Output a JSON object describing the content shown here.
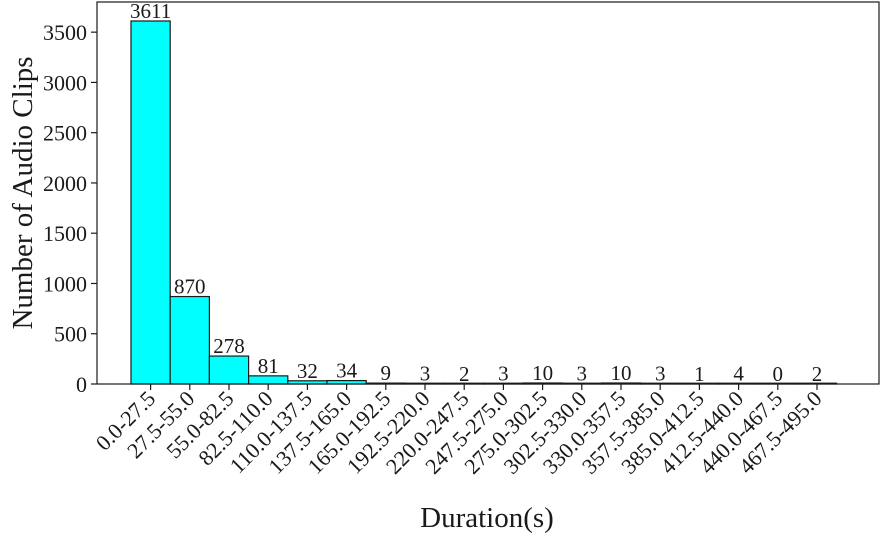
{
  "chart_data": {
    "type": "bar",
    "title": "",
    "xlabel": "Duration(s)",
    "ylabel": "Number of Audio Clips",
    "categories": [
      "0.0-27.5",
      "27.5-55.0",
      "55.0-82.5",
      "82.5-110.0",
      "110.0-137.5",
      "137.5-165.0",
      "165.0-192.5",
      "192.5-220.0",
      "220.0-247.5",
      "247.5-275.0",
      "275.0-302.5",
      "302.5-330.0",
      "330.0-357.5",
      "357.5-385.0",
      "385.0-412.5",
      "412.5-440.0",
      "440.0-467.5",
      "467.5-495.0"
    ],
    "values": [
      3611,
      870,
      278,
      81,
      32,
      34,
      9,
      3,
      2,
      3,
      10,
      3,
      10,
      3,
      1,
      4,
      0,
      2
    ],
    "ylim": [
      0,
      3800
    ],
    "yticks": [
      0,
      500,
      1000,
      1500,
      2000,
      2500,
      3000,
      3500
    ],
    "grid": false,
    "bar_color": "#00ffff",
    "bar_edge_color": "#1a1a1a",
    "data_labels": true
  }
}
